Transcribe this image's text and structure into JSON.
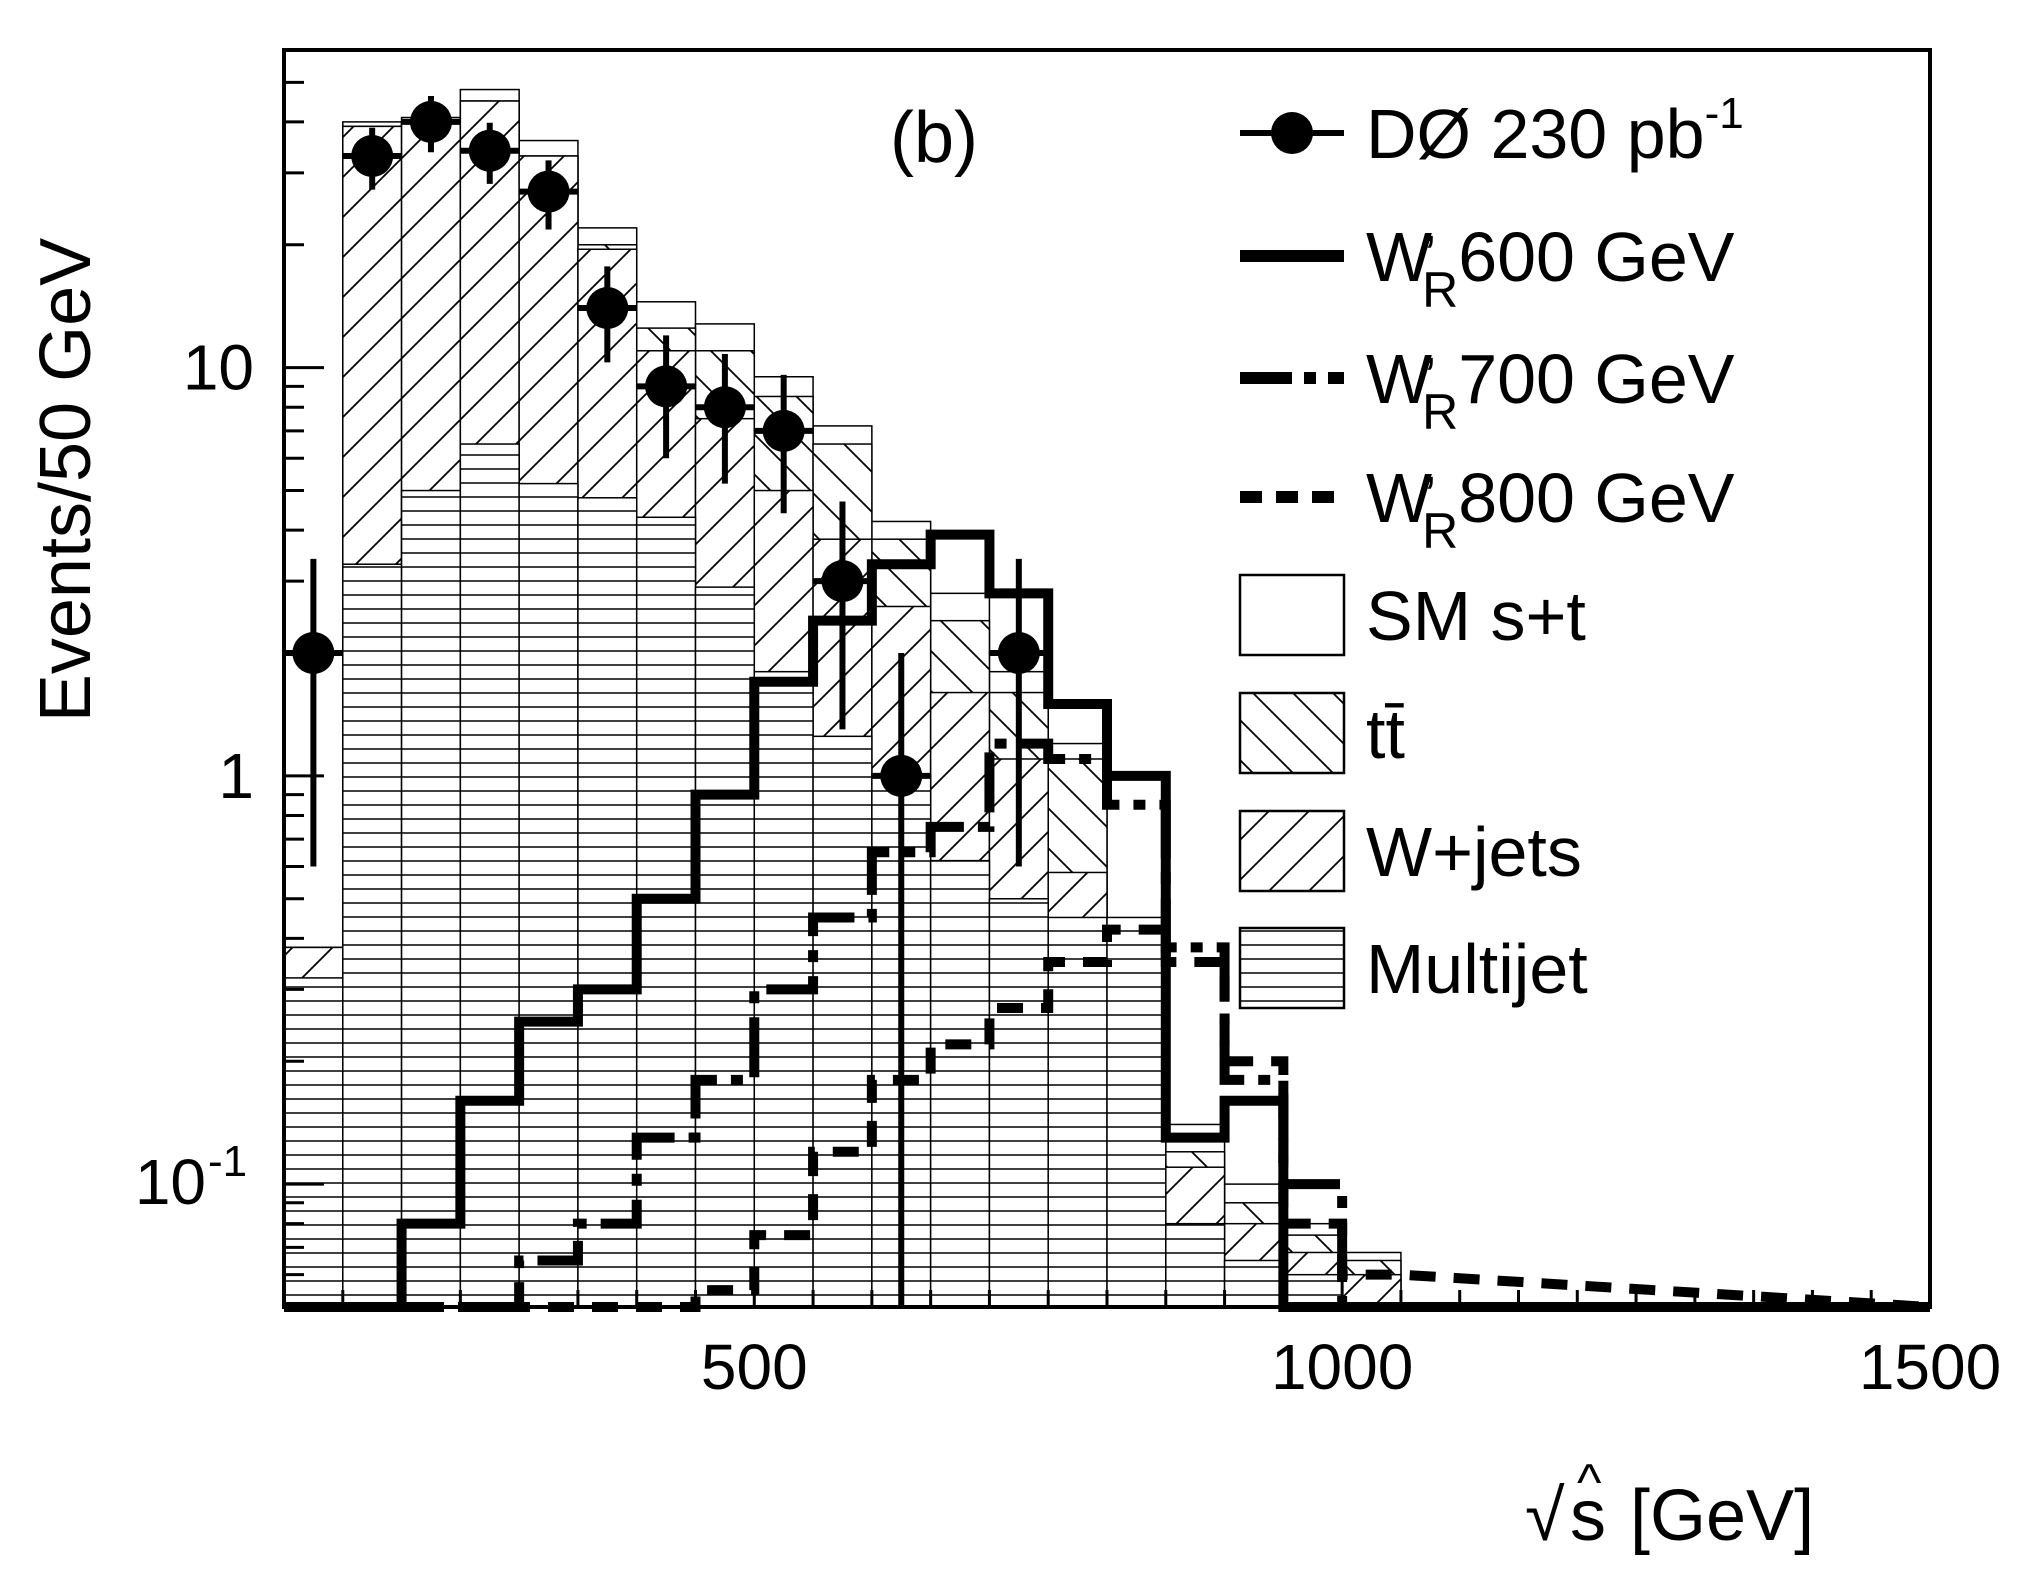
{
  "chart_data": {
    "type": "bar",
    "panel_label": "(b)",
    "xlabel_radical": "√",
    "xlabel_var": "s",
    "xlabel_hat": "^",
    "xlabel_rest": " [GeV]",
    "ylabel": "Events/50 GeV",
    "xlim": [
      100,
      1500
    ],
    "ylim": [
      0.05,
      60
    ],
    "yscale": "log",
    "x_ticks": [
      {
        "value": 500,
        "label": "500"
      },
      {
        "value": 1000,
        "label": "1000"
      },
      {
        "value": 1500,
        "label": "1500"
      }
    ],
    "y_ticks": [
      {
        "value": 0.1,
        "label": "10",
        "exp": "-1"
      },
      {
        "value": 1,
        "label": "1",
        "exp": ""
      },
      {
        "value": 10,
        "label": "10",
        "exp": ""
      }
    ],
    "bin_edges": [
      100,
      150,
      200,
      250,
      300,
      350,
      400,
      450,
      500,
      550,
      600,
      650,
      700,
      750,
      800,
      850,
      900,
      950,
      1000,
      1050
    ],
    "stack": [
      {
        "name": "Multijet",
        "values": [
          0.32,
          3.3,
          5.0,
          6.5,
          5.2,
          4.8,
          4.3,
          2.9,
          1.8,
          1.25,
          1.0,
          0.62,
          0.5,
          0.45,
          0.45,
          0.08,
          0.065,
          0.06,
          0.05
        ]
      },
      {
        "name": "W+jets",
        "values": [
          0.38,
          39.0,
          40.0,
          45.0,
          33.0,
          19.5,
          11.0,
          7.5,
          5.0,
          3.8,
          2.6,
          1.6,
          1.1,
          0.58,
          0.2,
          0.11,
          0.08,
          0.068,
          0.06
        ]
      },
      {
        "name": "tt̄",
        "values": [
          0.38,
          39.0,
          40.0,
          45.0,
          33.0,
          20.0,
          12.5,
          11.0,
          8.5,
          6.5,
          3.8,
          2.4,
          1.6,
          1.1,
          0.22,
          0.12,
          0.09,
          0.075,
          0.065
        ]
      },
      {
        "name": "SM s+t",
        "values": [
          0.38,
          40.0,
          41.0,
          48.0,
          36.0,
          22.0,
          14.5,
          12.8,
          9.5,
          7.2,
          4.2,
          2.8,
          1.8,
          1.2,
          0.25,
          0.14,
          0.1,
          0.08,
          0.068
        ]
      }
    ],
    "signals": [
      {
        "name": "W'R600 GeV",
        "style": "solid",
        "values": [
          0.05,
          0.05,
          0.08,
          0.16,
          0.25,
          0.3,
          0.5,
          0.9,
          1.7,
          2.4,
          3.3,
          3.9,
          2.8,
          1.5,
          1.0,
          0.13,
          0.16,
          0.05,
          0.05
        ]
      },
      {
        "name": "W'R700 GeV",
        "style": "dashdot",
        "values": [
          0.05,
          0.05,
          0.05,
          0.05,
          0.065,
          0.08,
          0.13,
          0.18,
          0.3,
          0.45,
          0.65,
          0.75,
          1.2,
          1.1,
          0.85,
          0.38,
          0.18,
          0.1,
          0.05
        ]
      },
      {
        "name": "W'R800 GeV",
        "style": "dashed",
        "values": [
          0.05,
          0.05,
          0.05,
          0.05,
          0.05,
          0.05,
          0.05,
          0.055,
          0.075,
          0.12,
          0.18,
          0.22,
          0.27,
          0.35,
          0.42,
          0.35,
          0.2,
          0.08,
          0.06
        ]
      }
    ],
    "data_points": {
      "name": "DØ 230 pb-1",
      "x": [
        125,
        175,
        225,
        275,
        325,
        375,
        425,
        475,
        525,
        575,
        625,
        725
      ],
      "y": [
        2,
        33,
        40,
        34,
        27,
        14,
        9,
        8,
        7,
        3,
        1,
        2
      ],
      "yerr_low": [
        1.4,
        5.7,
        6.3,
        5.8,
        5.2,
        3.7,
        3.0,
        2.8,
        2.6,
        1.7,
        0.95,
        1.4
      ],
      "yerr_high": [
        1.4,
        5.7,
        6.3,
        5.8,
        5.2,
        3.7,
        3.0,
        2.8,
        2.6,
        1.7,
        1.0,
        1.4
      ]
    },
    "legend": {
      "placement": "top-right",
      "entries": [
        {
          "kind": "data",
          "text": "DØ 230 pb",
          "sup": "-1"
        },
        {
          "kind": "solid",
          "text_w": "W",
          "text_sub": "R",
          "text_rest": "600 GeV"
        },
        {
          "kind": "dashdot",
          "text_w": "W",
          "text_sub": "R",
          "text_rest": "700 GeV"
        },
        {
          "kind": "dashed",
          "text_w": "W",
          "text_sub": "R",
          "text_rest": "800 GeV"
        },
        {
          "kind": "open",
          "text": "SM s+t"
        },
        {
          "kind": "backhatch",
          "text": "tt̄"
        },
        {
          "kind": "fwdhatch",
          "text": "W+jets"
        },
        {
          "kind": "hhatch",
          "text": "Multijet"
        }
      ]
    }
  }
}
